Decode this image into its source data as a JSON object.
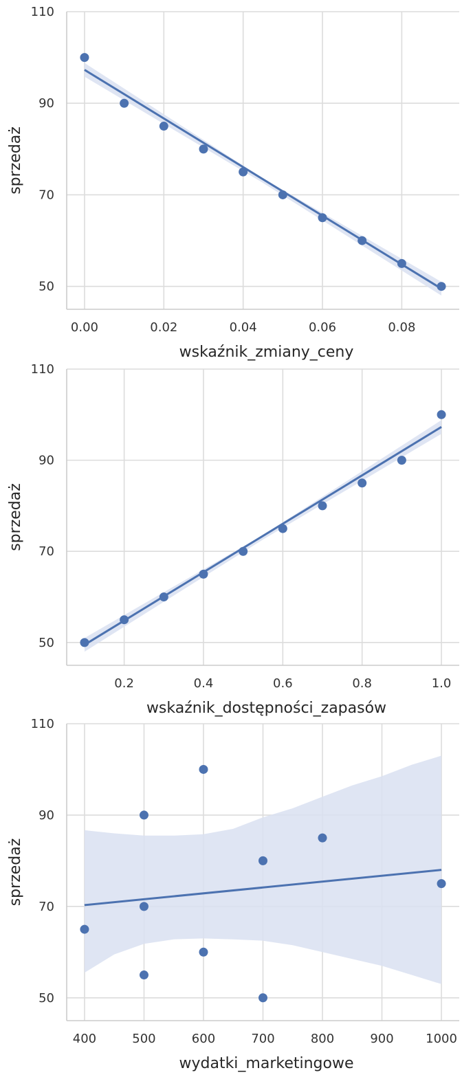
{
  "chart_data": [
    {
      "type": "scatter",
      "xlabel": "wskaźnik_zmiany_ceny",
      "ylabel": "sprzedaż",
      "xlim": [
        -0.0045,
        0.0945
      ],
      "ylim": [
        45,
        110
      ],
      "xticks": [
        0.0,
        0.02,
        0.04,
        0.06,
        0.08
      ],
      "xtick_labels": [
        "0.00",
        "0.02",
        "0.04",
        "0.06",
        "0.08"
      ],
      "yticks": [
        50,
        70,
        90,
        110
      ],
      "ytick_labels": [
        "50",
        "70",
        "90",
        "110"
      ],
      "grid": true,
      "points": {
        "x": [
          0.0,
          0.01,
          0.02,
          0.03,
          0.04,
          0.05,
          0.06,
          0.07,
          0.08,
          0.09
        ],
        "y": [
          100,
          90,
          85,
          80,
          75,
          70,
          65,
          60,
          55,
          50
        ]
      },
      "regression": {
        "x": [
          0.0,
          0.09
        ],
        "y": [
          97.3,
          49.5
        ]
      },
      "ci_band": {
        "x": [
          0.0,
          0.045,
          0.09
        ],
        "lower": [
          95.8,
          72.6,
          48.0
        ],
        "upper": [
          98.8,
          73.6,
          51.0
        ]
      },
      "color": "#4c72b0",
      "band_color": "#d9e1f1"
    },
    {
      "type": "scatter",
      "xlabel": "wskaźnik_dostępności_zapasów",
      "ylabel": "sprzedaż",
      "xlim": [
        0.055,
        1.045
      ],
      "ylim": [
        45,
        110
      ],
      "xticks": [
        0.2,
        0.4,
        0.6,
        0.8,
        1.0
      ],
      "xtick_labels": [
        "0.2",
        "0.4",
        "0.6",
        "0.8",
        "1.0"
      ],
      "yticks": [
        50,
        70,
        90,
        110
      ],
      "ytick_labels": [
        "50",
        "70",
        "90",
        "110"
      ],
      "grid": true,
      "points": {
        "x": [
          0.1,
          0.2,
          0.3,
          0.4,
          0.5,
          0.6,
          0.7,
          0.8,
          0.9,
          1.0
        ],
        "y": [
          50,
          55,
          60,
          65,
          70,
          75,
          80,
          85,
          90,
          100
        ]
      },
      "regression": {
        "x": [
          0.1,
          1.0
        ],
        "y": [
          49.5,
          97.3
        ]
      },
      "ci_band": {
        "x": [
          0.1,
          0.55,
          1.0
        ],
        "lower": [
          48.0,
          72.6,
          95.8
        ],
        "upper": [
          51.0,
          73.6,
          98.8
        ]
      },
      "color": "#4c72b0",
      "band_color": "#d9e1f1"
    },
    {
      "type": "scatter",
      "xlabel": "wydatki_marketingowe",
      "ylabel": "sprzedaż",
      "xlim": [
        370,
        1030
      ],
      "ylim": [
        45,
        110
      ],
      "xticks": [
        400,
        500,
        600,
        700,
        800,
        900,
        1000
      ],
      "xtick_labels": [
        "400",
        "500",
        "600",
        "700",
        "800",
        "900",
        "1000"
      ],
      "yticks": [
        50,
        70,
        90,
        110
      ],
      "ytick_labels": [
        "50",
        "70",
        "90",
        "110"
      ],
      "grid": true,
      "points": {
        "x": [
          400,
          500,
          500,
          500,
          600,
          600,
          700,
          700,
          800,
          1000
        ],
        "y": [
          65,
          90,
          70,
          55,
          100,
          60,
          80,
          50,
          85,
          75
        ]
      },
      "regression": {
        "x": [
          400,
          1000
        ],
        "y": [
          70.3,
          78.0
        ]
      },
      "ci_band": {
        "x": [
          400,
          450,
          500,
          550,
          600,
          650,
          700,
          750,
          800,
          850,
          900,
          950,
          1000
        ],
        "lower": [
          55.5,
          59.5,
          61.8,
          62.8,
          63.0,
          62.8,
          62.5,
          61.5,
          60.0,
          58.5,
          57.0,
          55.0,
          53.0
        ],
        "upper": [
          86.7,
          86.0,
          85.5,
          85.5,
          85.8,
          87.0,
          89.5,
          91.5,
          94.0,
          96.5,
          98.5,
          101.0,
          103.0
        ]
      },
      "color": "#4c72b0",
      "band_color": "#d9e1f1"
    }
  ]
}
